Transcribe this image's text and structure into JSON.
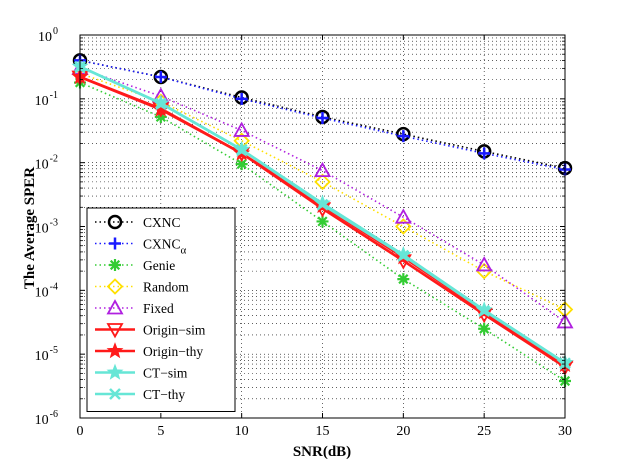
{
  "chart_data": {
    "type": "line",
    "xlabel": "SNR(dB)",
    "ylabel": "The Average SPER",
    "xlim": [
      0,
      30
    ],
    "ylim": [
      1e-06,
      1
    ],
    "yscale": "log",
    "grid": true,
    "legend_position": "bottom-left",
    "x_ticks": [
      "0",
      "5",
      "10",
      "15",
      "20",
      "25",
      "30"
    ],
    "y_ticks": [
      {
        "base": "10",
        "exp": "-6"
      },
      {
        "base": "10",
        "exp": "-5"
      },
      {
        "base": "10",
        "exp": "-4"
      },
      {
        "base": "10",
        "exp": "-3"
      },
      {
        "base": "10",
        "exp": "-2"
      },
      {
        "base": "10",
        "exp": "-1"
      },
      {
        "base": "10",
        "exp": "0"
      }
    ],
    "x": [
      0,
      5,
      10,
      15,
      20,
      25,
      30
    ],
    "series": [
      {
        "name": "CXNC",
        "sub": "",
        "color": "#000000",
        "line": "dotted",
        "marker": "circle",
        "values": [
          0.4,
          0.22,
          0.105,
          0.052,
          0.028,
          0.015,
          0.0082
        ]
      },
      {
        "name": "CXNC",
        "sub": "α",
        "color": "#1a1aff",
        "line": "dotted",
        "marker": "plus",
        "values": [
          0.4,
          0.22,
          0.1,
          0.05,
          0.026,
          0.014,
          0.0078
        ]
      },
      {
        "name": "Genie",
        "sub": "",
        "color": "#33cc33",
        "line": "dotted",
        "marker": "asterisk",
        "values": [
          0.18,
          0.052,
          0.0095,
          0.0012,
          0.00015,
          2.5e-05,
          3.8e-06
        ]
      },
      {
        "name": "Random",
        "sub": "",
        "color": "#ffe000",
        "line": "dotted",
        "marker": "diamond",
        "values": [
          0.25,
          0.09,
          0.022,
          0.005,
          0.001,
          0.0002,
          5e-05
        ]
      },
      {
        "name": "Fixed",
        "sub": "",
        "color": "#b020e0",
        "line": "dotted",
        "marker": "triangle-up",
        "values": [
          0.3,
          0.11,
          0.032,
          0.0075,
          0.0014,
          0.00025,
          3.2e-05
        ]
      },
      {
        "name": "Origin−sim",
        "sub": "",
        "color": "#ff1a1a",
        "line": "solid",
        "marker": "triangle-down",
        "values": [
          0.22,
          0.07,
          0.014,
          0.0019,
          0.00029,
          4.2e-05,
          6.3e-06
        ]
      },
      {
        "name": "Origin−thy",
        "sub": "",
        "color": "#ff1a1a",
        "line": "solid",
        "marker": "star",
        "values": [
          0.22,
          0.068,
          0.014,
          0.0021,
          0.00033,
          4.6e-05,
          6.8e-06
        ]
      },
      {
        "name": "CT−sim",
        "sub": "",
        "color": "#66e6d6",
        "line": "solid",
        "marker": "star",
        "values": [
          0.32,
          0.085,
          0.016,
          0.0023,
          0.00036,
          4.9e-05,
          7.3e-06
        ]
      },
      {
        "name": "CT−thy",
        "sub": "",
        "color": "#66e6d6",
        "line": "solid",
        "marker": "x",
        "values": [
          0.32,
          0.085,
          0.016,
          0.0022,
          0.00035,
          4.8e-05,
          7.2e-06
        ]
      }
    ]
  }
}
